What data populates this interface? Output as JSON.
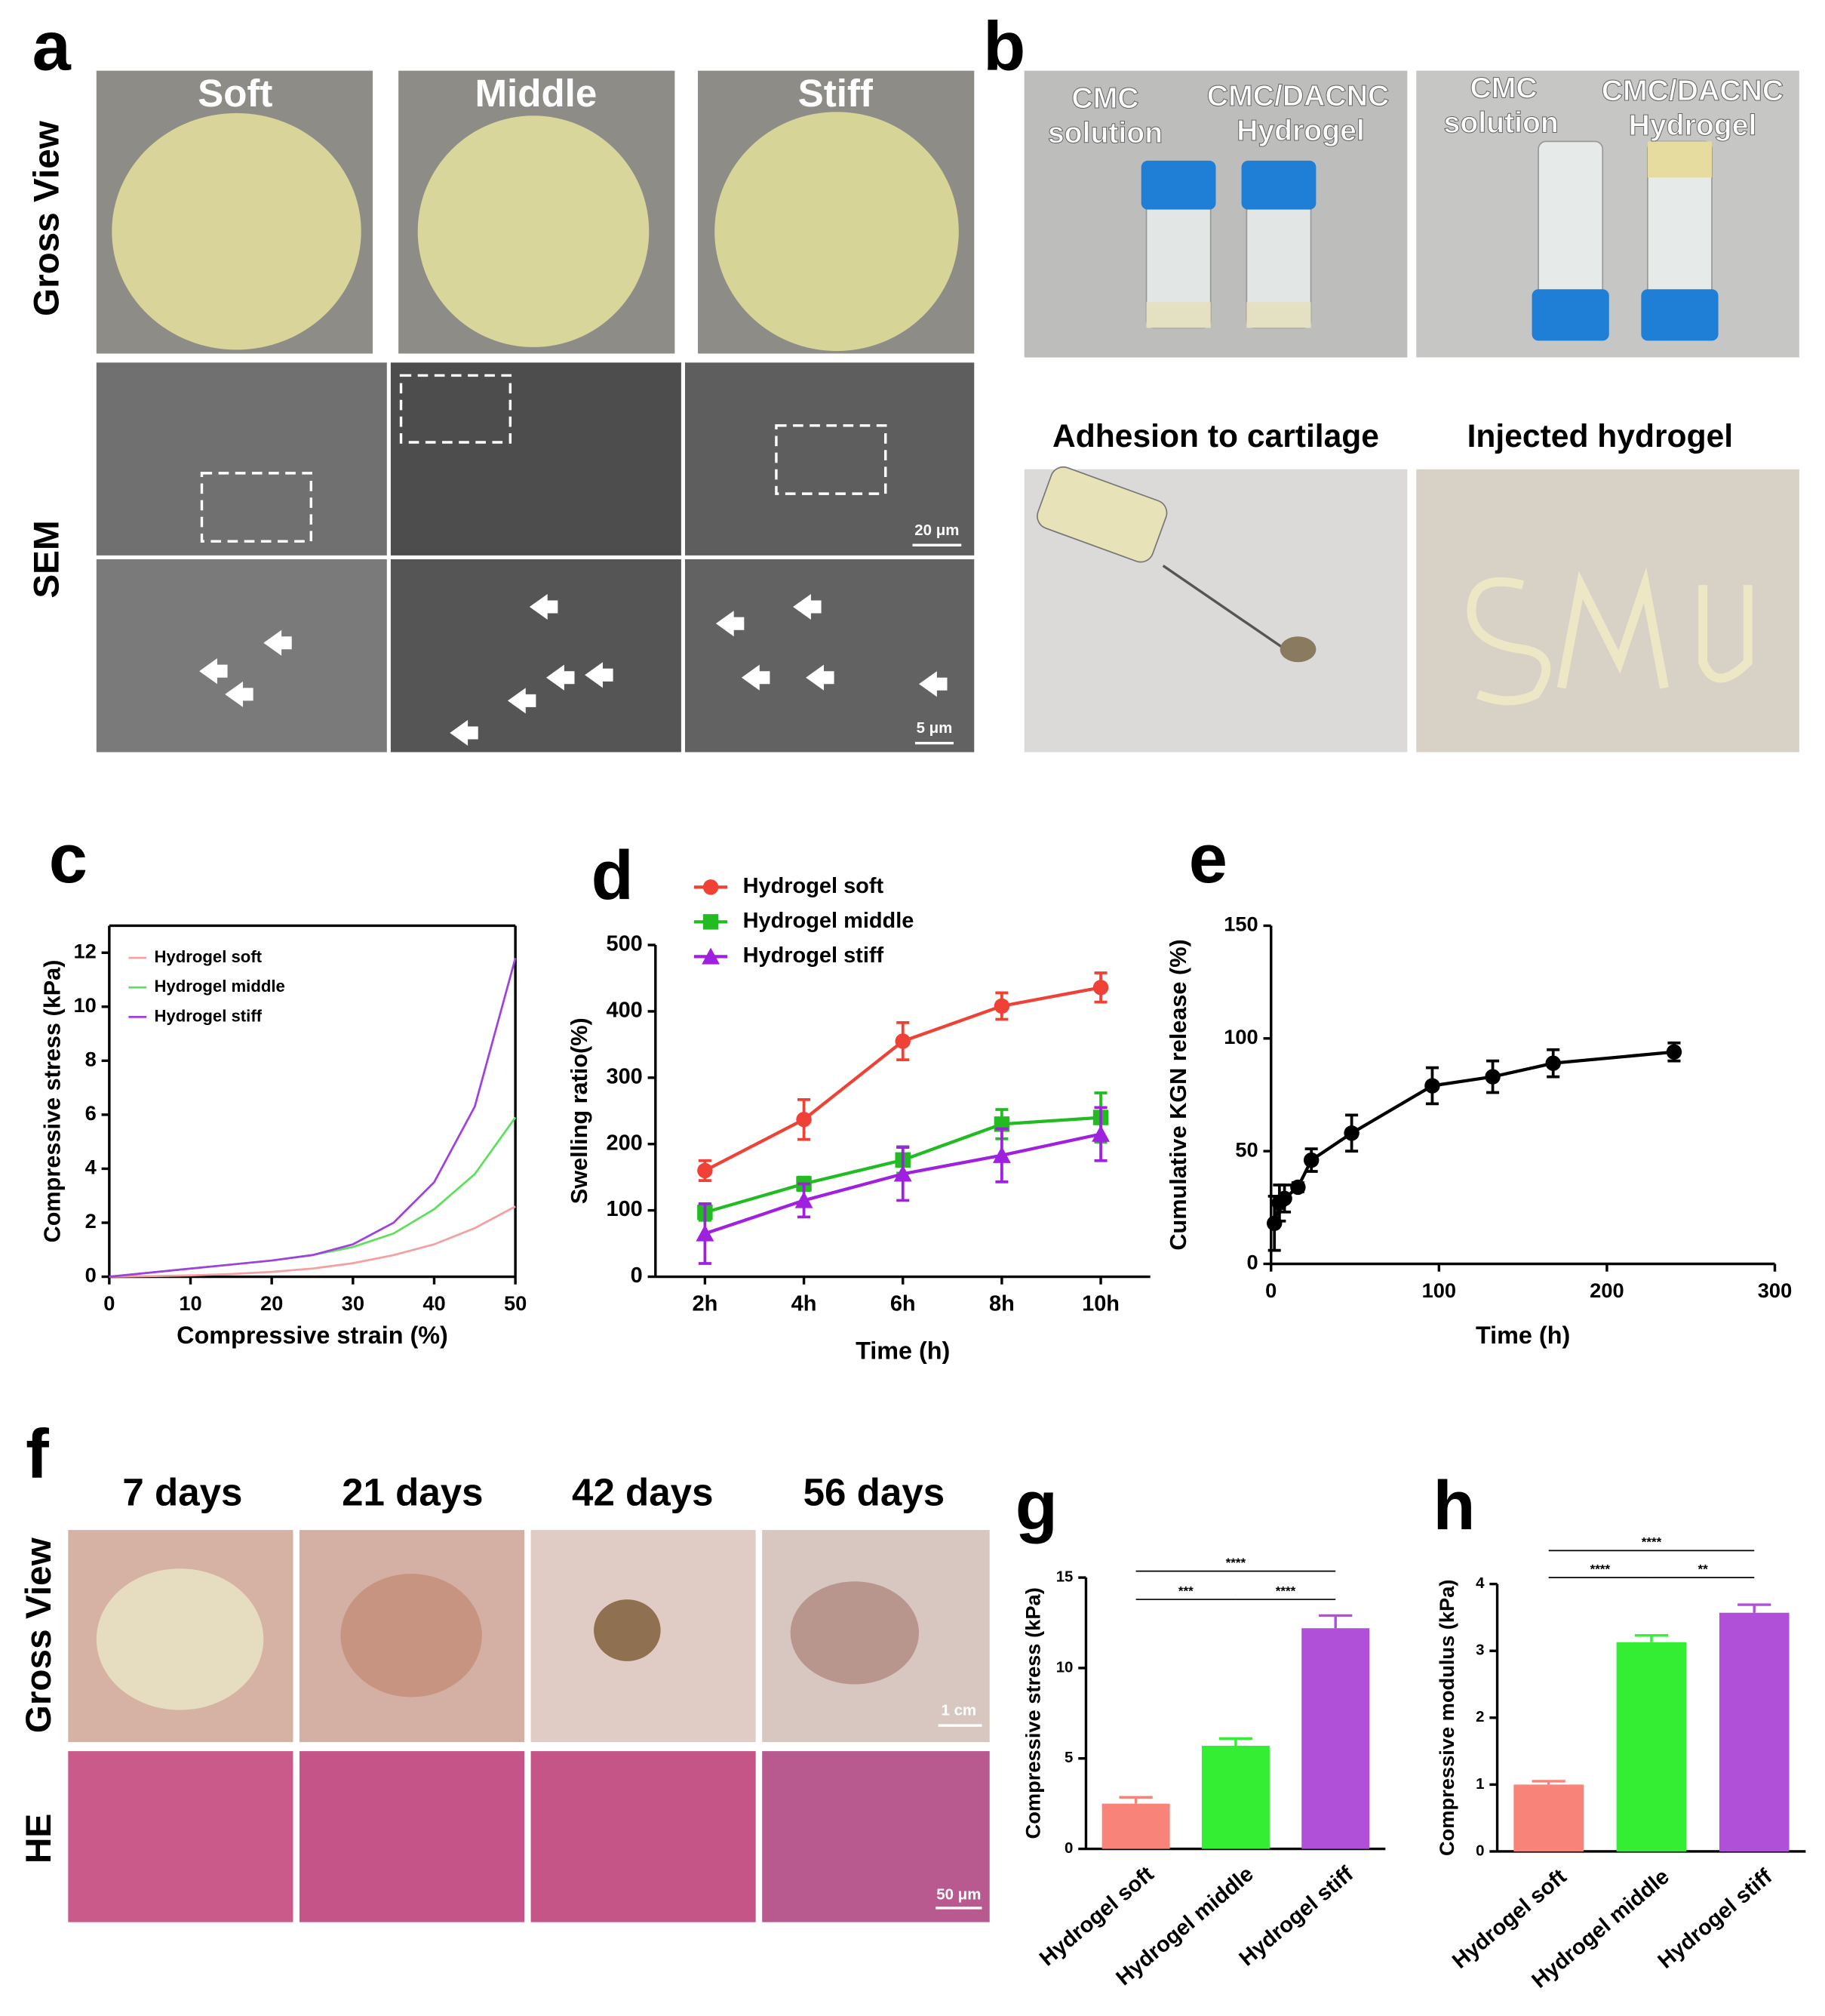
{
  "panel_labels": [
    "a",
    "b",
    "c",
    "d",
    "e",
    "f",
    "g",
    "h"
  ],
  "panel_a": {
    "columns": [
      "Soft",
      "Middle",
      "Stiff"
    ],
    "rows": [
      "Gross View",
      "SEM"
    ],
    "scale_bars": [
      "20 μm",
      "5 μm"
    ]
  },
  "panel_b": {
    "photo_labels": [
      [
        "CMC",
        "solution"
      ],
      [
        "CMC/DACNC",
        "Hydrogel"
      ],
      [
        "CMC",
        "solution"
      ],
      [
        "CMC/DACNC",
        "Hydrogel"
      ]
    ],
    "captions": [
      "Adhesion to cartilage",
      "Injected hydrogel"
    ]
  },
  "panel_f": {
    "columns": [
      "7 days",
      "21 days",
      "42 days",
      "56 days"
    ],
    "rows": [
      "Gross View",
      "HE"
    ],
    "scale_bars": [
      "1 cm",
      "50 μm"
    ]
  },
  "chart_data": [
    {
      "type": "line",
      "x_label": "Compressive strain (%)",
      "y_label": "Compressive stress (kPa)",
      "x": [
        0,
        5,
        10,
        15,
        20,
        25,
        30,
        35,
        40,
        45,
        50
      ],
      "series": [
        {
          "name": "Hydrogel soft",
          "color": "#f4a0a0",
          "values": [
            0,
            0.02,
            0.05,
            0.1,
            0.18,
            0.3,
            0.5,
            0.8,
            1.2,
            1.8,
            2.6
          ]
        },
        {
          "name": "Hydrogel middle",
          "color": "#5ee05e",
          "values": [
            0,
            0.15,
            0.3,
            0.45,
            0.6,
            0.8,
            1.1,
            1.6,
            2.5,
            3.8,
            5.9
          ]
        },
        {
          "name": "Hydrogel stiff",
          "color": "#a040e0",
          "values": [
            0,
            0.15,
            0.3,
            0.45,
            0.6,
            0.8,
            1.2,
            2.0,
            3.5,
            6.3,
            11.8
          ]
        }
      ],
      "xlim": [
        0,
        50
      ],
      "xticks": [
        0,
        10,
        20,
        30,
        40,
        50
      ],
      "ylim": [
        0,
        13
      ],
      "yticks": [
        0,
        2,
        4,
        6,
        8,
        10,
        12
      ],
      "legend": "upper left",
      "grid": false
    },
    {
      "type": "line",
      "x_label": "Time (h)",
      "y_label": "Swelling ratio(%)",
      "categories": [
        "2h",
        "4h",
        "6h",
        "8h",
        "10h"
      ],
      "series": [
        {
          "name": "Hydrogel soft",
          "color": "#ef4135",
          "marker": "circle",
          "values": [
            160,
            237,
            355,
            408,
            436
          ],
          "errors": [
            15,
            30,
            28,
            20,
            22
          ]
        },
        {
          "name": "Hydrogel middle",
          "color": "#22bb22",
          "marker": "square",
          "values": [
            97,
            140,
            176,
            230,
            240
          ],
          "errors": [
            12,
            10,
            20,
            22,
            37
          ]
        },
        {
          "name": "Hydrogel stiff",
          "color": "#a020e0",
          "marker": "triangle",
          "values": [
            65,
            115,
            155,
            183,
            215
          ],
          "errors": [
            45,
            25,
            40,
            40,
            40
          ]
        }
      ],
      "ylim": [
        0,
        500
      ],
      "yticks": [
        0,
        100,
        200,
        300,
        400,
        500
      ],
      "legend": "upper left",
      "grid": false
    },
    {
      "type": "line",
      "x_label": "Time (h)",
      "y_label": "Cumulative KGN release (%)",
      "x": [
        2,
        5,
        8,
        16,
        24,
        48,
        96,
        132,
        168,
        240
      ],
      "series": [
        {
          "color": "#000000",
          "marker": "circle",
          "values": [
            18,
            27,
            29,
            34,
            46,
            58,
            79,
            83,
            89,
            94
          ],
          "errors": [
            12,
            8,
            6,
            2,
            5,
            8,
            8,
            7,
            6,
            4
          ]
        }
      ],
      "xlim": [
        0,
        300
      ],
      "xticks": [
        0,
        100,
        200,
        300
      ],
      "ylim": [
        0,
        150
      ],
      "yticks": [
        0,
        50,
        100,
        150
      ],
      "grid": false
    },
    {
      "type": "bar",
      "y_label": "Compressive stress (kPa)",
      "categories": [
        "Hydrogel soft",
        "Hydrogel middle",
        "Hydrogel stiff"
      ],
      "values": [
        2.5,
        5.7,
        12.2
      ],
      "errors": [
        0.35,
        0.4,
        0.7
      ],
      "colors": [
        "#f88379",
        "#33ee33",
        "#b050d8"
      ],
      "significance": [
        {
          "label": "****",
          "span": [
            0,
            2
          ]
        },
        {
          "label": "***",
          "span": [
            0,
            1
          ]
        },
        {
          "label": "****",
          "span": [
            1,
            2
          ]
        }
      ],
      "ylim": [
        0,
        15
      ],
      "yticks": [
        0,
        5,
        10,
        15
      ],
      "grid": false
    },
    {
      "type": "bar",
      "y_label": "Compressive modulus (kPa)",
      "categories": [
        "Hydrogel soft",
        "Hydrogel middle",
        "Hydrogel stiff"
      ],
      "values": [
        1.0,
        3.13,
        3.57
      ],
      "errors": [
        0.05,
        0.1,
        0.12
      ],
      "colors": [
        "#f88379",
        "#33ee33",
        "#b050d8"
      ],
      "significance": [
        {
          "label": "****",
          "span": [
            0,
            2
          ]
        },
        {
          "label": "****",
          "span": [
            0,
            1
          ]
        },
        {
          "label": "**",
          "span": [
            1,
            2
          ]
        }
      ],
      "ylim": [
        0,
        4
      ],
      "yticks": [
        0,
        1,
        2,
        3,
        4
      ],
      "grid": false
    }
  ]
}
